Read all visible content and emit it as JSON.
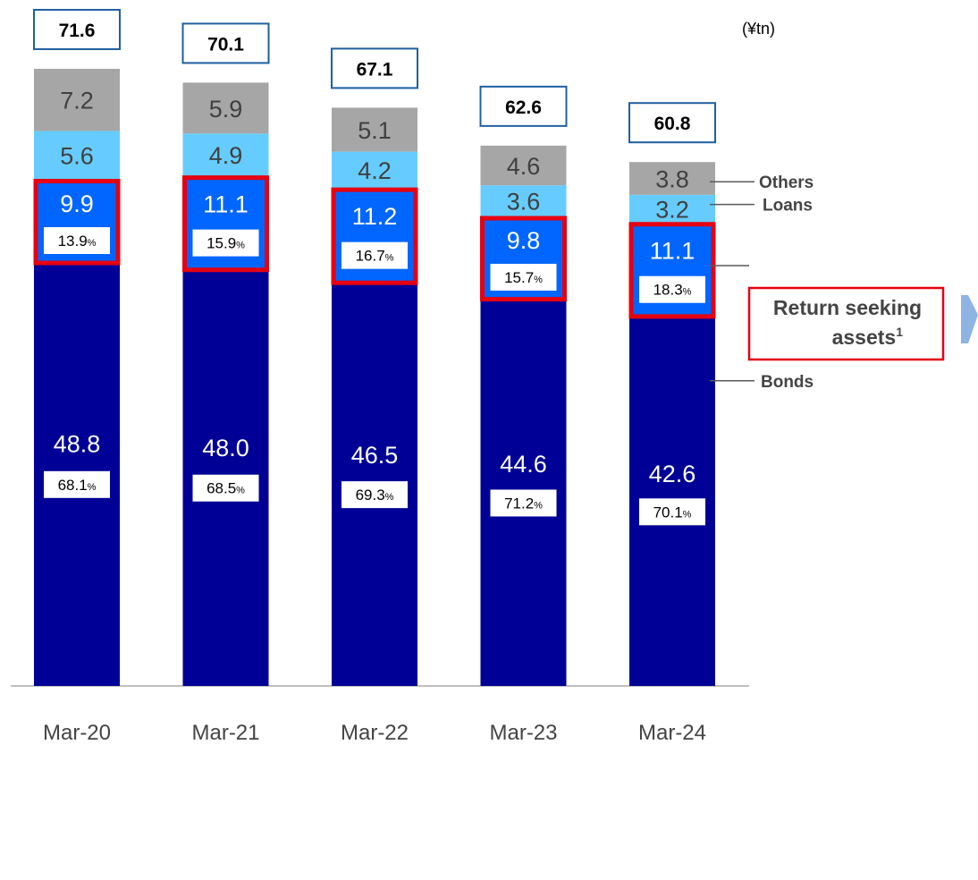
{
  "chart_data": {
    "type": "bar",
    "stacked": true,
    "unit": "(¥tn)",
    "categories": [
      "Mar-20",
      "Mar-21",
      "Mar-22",
      "Mar-23",
      "Mar-24"
    ],
    "totals": [
      "71.6",
      "70.1",
      "67.1",
      "62.6",
      "60.8"
    ],
    "series": [
      {
        "name": "Bonds",
        "values": [
          48.8,
          48.0,
          46.5,
          44.6,
          42.6
        ],
        "labels": [
          "48.8",
          "48.0",
          "46.5",
          "44.6",
          "42.6"
        ],
        "percents": [
          "68.1",
          "68.5",
          "69.3",
          "71.2",
          "70.1"
        ],
        "color": "#000096"
      },
      {
        "name": "Return seeking assets",
        "name_superscript": "1",
        "values": [
          9.9,
          11.1,
          11.2,
          9.8,
          11.1
        ],
        "labels": [
          "9.9",
          "11.1",
          "11.2",
          "9.8",
          "11.1"
        ],
        "percents": [
          "13.9",
          "15.9",
          "16.7",
          "15.7",
          "18.3"
        ],
        "color": "#0066FF",
        "highlight_color": "#E60012"
      },
      {
        "name": "Loans",
        "values": [
          5.6,
          4.9,
          4.2,
          3.6,
          3.2
        ],
        "labels": [
          "5.6",
          "4.9",
          "4.2",
          "3.6",
          "3.2"
        ],
        "color": "#66CCFF"
      },
      {
        "name": "Others",
        "values": [
          7.2,
          5.9,
          5.1,
          4.6,
          3.8
        ],
        "labels": [
          "7.2",
          "5.9",
          "5.1",
          "4.6",
          "3.8"
        ],
        "color": "#A6A6A6"
      }
    ],
    "percent_suffix": "%",
    "legend_placement": "right",
    "grid": false,
    "ylim": [
      0,
      71.6
    ]
  }
}
